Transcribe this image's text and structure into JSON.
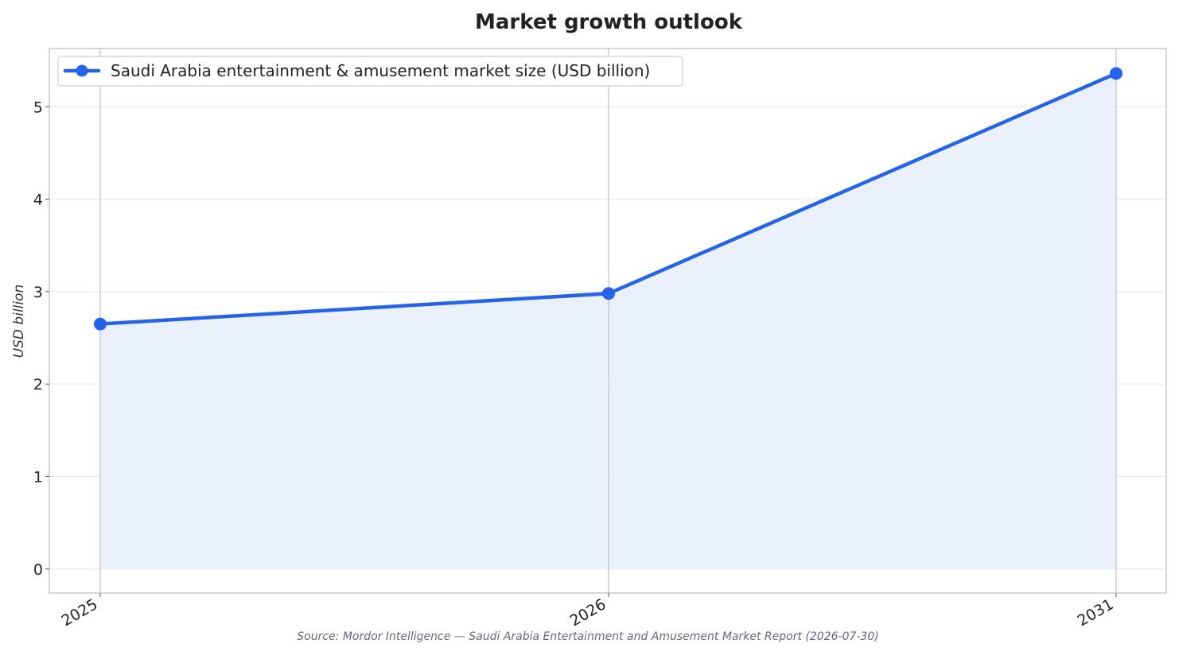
{
  "chart_data": {
    "type": "area",
    "title": "Market growth outlook",
    "xlabel": "",
    "ylabel": "USD billion",
    "categories": [
      "2025",
      "2026",
      "2031"
    ],
    "series": [
      {
        "name": "Saudi Arabia entertainment & amusement market size (USD billion)",
        "values": [
          2.65,
          2.98,
          5.36
        ]
      }
    ],
    "ylim": [
      -0.26,
      5.63
    ],
    "yticks": [
      "0",
      "1",
      "2",
      "3",
      "4",
      "5"
    ],
    "grid": true,
    "legend": "top-left",
    "source": "Source: Mordor Intelligence — Saudi Arabia Entertainment and Amusement Market Report (2026-07-30)",
    "colors": {
      "line": "#2563eb",
      "fill": "#e9effb",
      "grid": "#e6e6e6",
      "vline": "#c4c7d1",
      "frame": "#c8c8c8"
    }
  }
}
